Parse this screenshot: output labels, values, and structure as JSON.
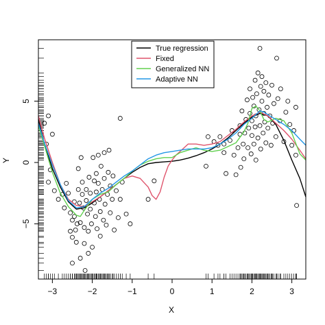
{
  "chart_data": {
    "type": "scatter",
    "xlabel": "X",
    "ylabel": "Y",
    "xlim": [
      -3.35,
      3.35
    ],
    "ylim": [
      -9.5,
      10.0
    ],
    "xticks": [
      -3,
      -2,
      -1,
      0,
      1,
      2,
      3
    ],
    "yticks": [
      -5,
      0,
      5
    ],
    "legend_position": "top-center",
    "series": [
      {
        "name": "True regression",
        "color": "#000000",
        "x": [
          -3.35,
          -3.2,
          -3.0,
          -2.8,
          -2.6,
          -2.4,
          -2.2,
          -2.0,
          -1.8,
          -1.6,
          -1.4,
          -1.2,
          -1.0,
          -0.8,
          -0.6,
          -0.4,
          -0.2,
          0.0,
          0.2,
          0.4,
          0.6,
          0.8,
          1.0,
          1.2,
          1.4,
          1.6,
          1.8,
          2.0,
          2.2,
          2.4,
          2.6,
          2.8,
          3.0,
          3.2,
          3.35
        ],
        "y": [
          3.5,
          1.5,
          -0.5,
          -2.0,
          -3.2,
          -3.8,
          -3.7,
          -3.3,
          -2.8,
          -2.3,
          -1.8,
          -1.3,
          -0.8,
          -0.4,
          -0.1,
          0.0,
          0.05,
          0.1,
          0.2,
          0.35,
          0.55,
          0.8,
          1.1,
          1.5,
          2.0,
          2.6,
          3.2,
          3.7,
          4.0,
          3.8,
          3.1,
          1.8,
          0.2,
          -1.3,
          -2.8
        ]
      },
      {
        "name": "Fixed",
        "color": "#df536b",
        "x": [
          -3.35,
          -3.2,
          -3.0,
          -2.8,
          -2.6,
          -2.4,
          -2.2,
          -2.0,
          -1.8,
          -1.6,
          -1.4,
          -1.2,
          -1.0,
          -0.8,
          -0.6,
          -0.5,
          -0.4,
          -0.3,
          -0.2,
          -0.1,
          0.0,
          0.1,
          0.2,
          0.3,
          0.4,
          0.6,
          0.8,
          1.0,
          1.2,
          1.4,
          1.6,
          1.8,
          2.0,
          2.2,
          2.4,
          2.6,
          2.8,
          3.0,
          3.2,
          3.35
        ],
        "y": [
          3.8,
          2.0,
          0.0,
          -1.8,
          -3.0,
          -3.5,
          -3.6,
          -3.2,
          -2.8,
          -2.3,
          -1.8,
          -1.3,
          -1.1,
          -1.3,
          -2.0,
          -2.7,
          -3.0,
          -2.4,
          -1.2,
          -0.3,
          0.2,
          0.6,
          0.9,
          1.2,
          1.5,
          1.5,
          1.4,
          1.5,
          1.7,
          2.2,
          2.7,
          3.3,
          3.8,
          4.1,
          3.8,
          3.2,
          2.6,
          1.9,
          1.0,
          0.3
        ]
      },
      {
        "name": "Generalized NN",
        "color": "#61d04f",
        "x": [
          -3.35,
          -3.2,
          -3.0,
          -2.8,
          -2.6,
          -2.4,
          -2.3,
          -2.2,
          -2.0,
          -1.8,
          -1.6,
          -1.4,
          -1.2,
          -1.0,
          -0.8,
          -0.6,
          -0.4,
          -0.2,
          0.0,
          0.2,
          0.4,
          0.6,
          0.8,
          1.0,
          1.2,
          1.4,
          1.6,
          1.8,
          1.9,
          2.0,
          2.1,
          2.2,
          2.3,
          2.4,
          2.6,
          2.8,
          3.0,
          3.2,
          3.35
        ],
        "y": [
          3.0,
          1.4,
          -0.8,
          -2.5,
          -3.6,
          -4.3,
          -4.4,
          -3.9,
          -3.0,
          -2.6,
          -2.4,
          -1.8,
          -1.3,
          -0.7,
          -0.2,
          0.1,
          0.3,
          0.4,
          0.4,
          0.8,
          1.0,
          1.2,
          1.0,
          0.9,
          1.0,
          1.3,
          1.6,
          2.5,
          3.2,
          4.4,
          4.6,
          4.2,
          3.5,
          3.3,
          3.6,
          3.4,
          2.4,
          0.7,
          0.2
        ]
      },
      {
        "name": "Adaptive NN",
        "color": "#2297e6",
        "x": [
          -3.35,
          -3.2,
          -3.0,
          -2.8,
          -2.6,
          -2.4,
          -2.2,
          -2.0,
          -1.8,
          -1.6,
          -1.4,
          -1.2,
          -1.0,
          -0.8,
          -0.6,
          -0.4,
          -0.2,
          0.0,
          0.2,
          0.4,
          0.6,
          0.8,
          1.0,
          1.2,
          1.4,
          1.6,
          1.8,
          2.0,
          2.1,
          2.2,
          2.3,
          2.4,
          2.6,
          2.8,
          3.0,
          3.2,
          3.35
        ],
        "y": [
          3.2,
          1.6,
          -0.2,
          -1.8,
          -3.1,
          -3.7,
          -3.6,
          -3.0,
          -2.5,
          -2.1,
          -1.6,
          -1.1,
          -0.7,
          -0.2,
          0.3,
          0.6,
          0.8,
          0.9,
          1.0,
          1.1,
          1.1,
          1.1,
          1.2,
          1.5,
          1.9,
          2.4,
          3.1,
          3.6,
          3.9,
          4.2,
          4.1,
          3.9,
          3.5,
          3.1,
          2.6,
          1.9,
          1.4
        ]
      }
    ],
    "points": [
      [
        -3.2,
        3.2
      ],
      [
        -3.15,
        1.5
      ],
      [
        -3.1,
        3.8
      ],
      [
        -3.0,
        2.3
      ],
      [
        -3.05,
        -0.6
      ],
      [
        -3.1,
        -1.6
      ],
      [
        -2.95,
        -2.3
      ],
      [
        -2.85,
        -3.0
      ],
      [
        -2.75,
        -2.6
      ],
      [
        -2.7,
        -3.7
      ],
      [
        -2.65,
        -1.7
      ],
      [
        -2.6,
        -2.5
      ],
      [
        -2.55,
        -4.1
      ],
      [
        -2.5,
        -4.7
      ],
      [
        -2.55,
        -5.6
      ],
      [
        -2.5,
        -6.1
      ],
      [
        -2.5,
        -8.2
      ],
      [
        -2.45,
        -3.2
      ],
      [
        -2.45,
        -4.4
      ],
      [
        -2.42,
        -5.5
      ],
      [
        -2.4,
        -6.5
      ],
      [
        -2.38,
        -5.0
      ],
      [
        -2.35,
        -0.5
      ],
      [
        -2.35,
        -2.2
      ],
      [
        -2.32,
        -3.3
      ],
      [
        -2.3,
        -4.9
      ],
      [
        -2.3,
        -7.8
      ],
      [
        -2.28,
        0.4
      ],
      [
        -2.25,
        -1.6
      ],
      [
        -2.25,
        -2.6
      ],
      [
        -2.22,
        -3.7
      ],
      [
        -2.2,
        -5.3
      ],
      [
        -2.2,
        -6.6
      ],
      [
        -2.18,
        -8.8
      ],
      [
        -2.15,
        -2.2
      ],
      [
        -2.15,
        -3.1
      ],
      [
        -2.12,
        -4.2
      ],
      [
        -2.1,
        -5.6
      ],
      [
        -2.1,
        -7.4
      ],
      [
        -2.08,
        -1.2
      ],
      [
        -2.05,
        -2.5
      ],
      [
        -2.05,
        -3.8
      ],
      [
        -2.02,
        -5.0
      ],
      [
        -2.0,
        -6.9
      ],
      [
        -1.98,
        0.4
      ],
      [
        -1.95,
        -1.5
      ],
      [
        -1.95,
        -3.3
      ],
      [
        -1.92,
        -4.4
      ],
      [
        -1.9,
        -0.9
      ],
      [
        -1.9,
        -2.4
      ],
      [
        -1.88,
        -5.4
      ],
      [
        -1.85,
        0.6
      ],
      [
        -1.85,
        -1.7
      ],
      [
        -1.82,
        -3.0
      ],
      [
        -1.8,
        -4.0
      ],
      [
        -1.8,
        -6.0
      ],
      [
        -1.78,
        -0.3
      ],
      [
        -1.75,
        -2.2
      ],
      [
        -1.72,
        -4.7
      ],
      [
        -1.7,
        0.8
      ],
      [
        -1.7,
        -1.3
      ],
      [
        -1.68,
        -3.4
      ],
      [
        -1.65,
        -5.1
      ],
      [
        -1.62,
        -2.6
      ],
      [
        -1.6,
        -0.8
      ],
      [
        -1.58,
        1.0
      ],
      [
        -1.55,
        -1.9
      ],
      [
        -1.55,
        -4.1
      ],
      [
        -1.5,
        -3.0
      ],
      [
        -1.48,
        -1.1
      ],
      [
        -1.45,
        -5.5
      ],
      [
        -1.4,
        -2.3
      ],
      [
        -1.35,
        -4.5
      ],
      [
        -1.3,
        3.6
      ],
      [
        -1.3,
        -3.0
      ],
      [
        -1.25,
        -1.6
      ],
      [
        -1.15,
        -4.2
      ],
      [
        -1.05,
        -5.0
      ],
      [
        -0.6,
        -3.0
      ],
      [
        -0.45,
        -1.5
      ],
      [
        0.9,
        2.1
      ],
      [
        0.85,
        -0.3
      ],
      [
        1.05,
        1.7
      ],
      [
        1.15,
        1.4
      ],
      [
        1.2,
        2.1
      ],
      [
        1.3,
        0.8
      ],
      [
        1.3,
        1.5
      ],
      [
        1.35,
        -0.9
      ],
      [
        1.45,
        1.8
      ],
      [
        1.5,
        2.6
      ],
      [
        1.55,
        0.6
      ],
      [
        1.6,
        -1.0
      ],
      [
        1.65,
        1.2
      ],
      [
        1.7,
        2.3
      ],
      [
        1.7,
        3.0
      ],
      [
        1.72,
        -0.4
      ],
      [
        1.75,
        4.2
      ],
      [
        1.78,
        1.5
      ],
      [
        1.8,
        0.3
      ],
      [
        1.82,
        2.4
      ],
      [
        1.85,
        3.5
      ],
      [
        1.88,
        5.1
      ],
      [
        1.9,
        1.2
      ],
      [
        1.92,
        2.8
      ],
      [
        1.95,
        4.0
      ],
      [
        1.95,
        6.0
      ],
      [
        1.98,
        0.7
      ],
      [
        2.0,
        2.2
      ],
      [
        2.0,
        3.4
      ],
      [
        2.02,
        5.3
      ],
      [
        2.05,
        1.5
      ],
      [
        2.05,
        4.6
      ],
      [
        2.08,
        2.9
      ],
      [
        2.08,
        6.7
      ],
      [
        2.1,
        3.8
      ],
      [
        2.1,
        0.2
      ],
      [
        2.12,
        5.6
      ],
      [
        2.15,
        2.0
      ],
      [
        2.15,
        7.3
      ],
      [
        2.18,
        4.3
      ],
      [
        2.2,
        9.3
      ],
      [
        2.2,
        3.0
      ],
      [
        2.22,
        6.2
      ],
      [
        2.22,
        1.1
      ],
      [
        2.25,
        5.0
      ],
      [
        2.25,
        7.0
      ],
      [
        2.28,
        2.4
      ],
      [
        2.3,
        4.0
      ],
      [
        2.3,
        5.8
      ],
      [
        2.32,
        3.3
      ],
      [
        2.35,
        6.5
      ],
      [
        2.35,
        1.6
      ],
      [
        2.38,
        4.5
      ],
      [
        2.4,
        2.8
      ],
      [
        2.42,
        5.5
      ],
      [
        2.45,
        3.8
      ],
      [
        2.48,
        1.4
      ],
      [
        2.5,
        6.3
      ],
      [
        2.52,
        3.2
      ],
      [
        2.55,
        4.8
      ],
      [
        2.6,
        2.1
      ],
      [
        2.62,
        8.5
      ],
      [
        2.65,
        5.2
      ],
      [
        2.7,
        3.4
      ],
      [
        2.72,
        6.0
      ],
      [
        2.8,
        1.7
      ],
      [
        2.85,
        4.1
      ],
      [
        2.9,
        5.0
      ],
      [
        2.95,
        3.1
      ],
      [
        3.0,
        1.4
      ],
      [
        3.05,
        2.6
      ],
      [
        3.1,
        0.6
      ],
      [
        3.1,
        4.5
      ],
      [
        3.12,
        -3.5
      ]
    ]
  }
}
